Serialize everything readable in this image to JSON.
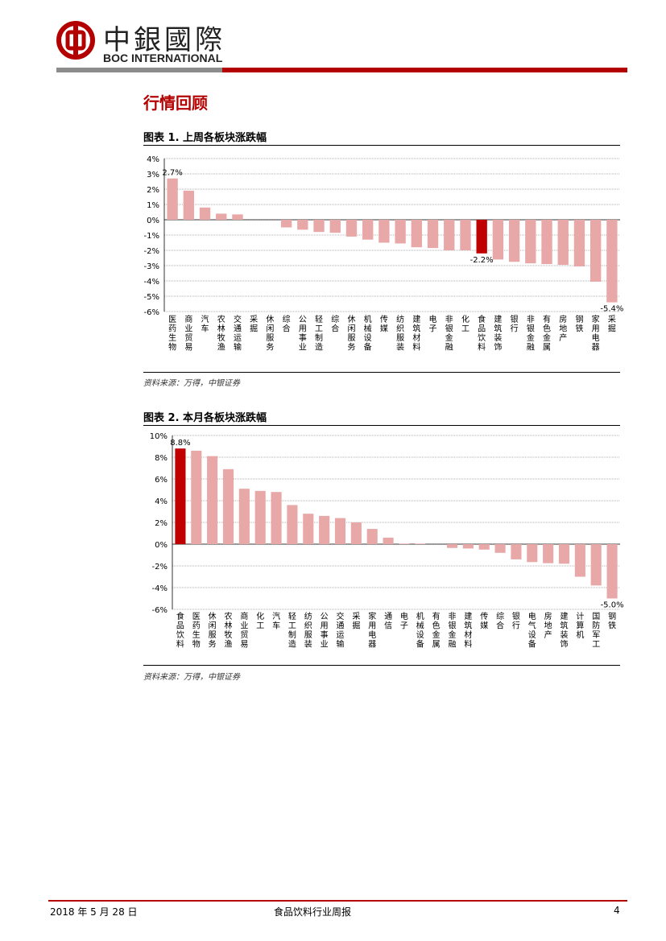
{
  "header": {
    "logo_cn": "中銀國際",
    "logo_en": "BOC INTERNATIONAL"
  },
  "section_title": "行情回顾",
  "colors": {
    "bar": "#e8a8a8",
    "highlight": "#c00000",
    "brand_red": "#b30000"
  },
  "chart_data": [
    {
      "type": "bar",
      "title": "图表 1. 上周各板块涨跌幅",
      "categories": [
        "医药生物",
        "商业贸易",
        "汽车",
        "农林牧渔",
        "交通运输",
        "采掘",
        "休闲服务",
        "综合",
        "公用事业",
        "轻工制造",
        "综合",
        "休闲服务",
        "机械设备",
        "传媒",
        "纺织服装",
        "建筑材料",
        "电子",
        "非银金融",
        "化工",
        "食品饮料",
        "建筑装饰",
        "银行",
        "非银金融",
        "有色金属",
        "房地产",
        "钢铁",
        "家用电器",
        "采掘"
      ],
      "values": [
        2.7,
        1.9,
        0.8,
        0.4,
        0.35,
        0.0,
        0.0,
        -0.5,
        -0.65,
        -0.8,
        -0.85,
        -1.1,
        -1.3,
        -1.5,
        -1.55,
        -1.8,
        -1.85,
        -2.0,
        -2.0,
        -2.2,
        -2.6,
        -2.75,
        -2.85,
        -2.9,
        -2.95,
        -3.05,
        -4.05,
        -5.4
      ],
      "highlight_index": 19,
      "ylim": [
        -6,
        4
      ],
      "yticks": [
        "4%",
        "3%",
        "2%",
        "1%",
        "0%",
        "-1%",
        "-2%",
        "-3%",
        "-4%",
        "-5%",
        "-6%"
      ],
      "labels": [
        {
          "index": 0,
          "text": "2.7%"
        },
        {
          "index": 19,
          "text": "-2.2%"
        },
        {
          "index": 27,
          "text": "-5.4%"
        }
      ],
      "source": "资料来源：万得，中银证券"
    },
    {
      "type": "bar",
      "title": "图表 2. 本月各板块涨跌幅",
      "categories": [
        "食品饮料",
        "医药生物",
        "休闲服务",
        "农林牧渔",
        "商业贸易",
        "化工",
        "汽车",
        "轻工制造",
        "纺织服装",
        "公用事业",
        "交通运输",
        "采掘",
        "家用电器",
        "通信",
        "电子",
        "机械设备",
        "有色金属",
        "非银金融",
        "建筑材料",
        "传媒",
        "综合",
        "银行",
        "电气设备",
        "房地产",
        "建筑装饰",
        "计算机",
        "国防军工",
        "钢铁"
      ],
      "values": [
        8.8,
        8.6,
        8.1,
        6.9,
        5.1,
        4.9,
        4.8,
        3.6,
        2.8,
        2.6,
        2.4,
        2.0,
        1.4,
        0.6,
        0.05,
        0.05,
        0.0,
        -0.35,
        -0.4,
        -0.5,
        -0.8,
        -1.4,
        -1.65,
        -1.75,
        -1.8,
        -3.0,
        -3.8,
        -5.0
      ],
      "highlight_index": 0,
      "ylim": [
        -6,
        10
      ],
      "yticks": [
        "10%",
        "8%",
        "6%",
        "4%",
        "2%",
        "0%",
        "-2%",
        "-4%",
        "-6%"
      ],
      "labels": [
        {
          "index": 0,
          "text": "8.8%"
        },
        {
          "index": 27,
          "text": "-5.0%"
        }
      ],
      "source": "资料来源：万得，中银证券"
    }
  ],
  "footer": {
    "date": "2018 年 5 月 28 日",
    "report_title": "食品饮料行业周报",
    "page": "4"
  }
}
